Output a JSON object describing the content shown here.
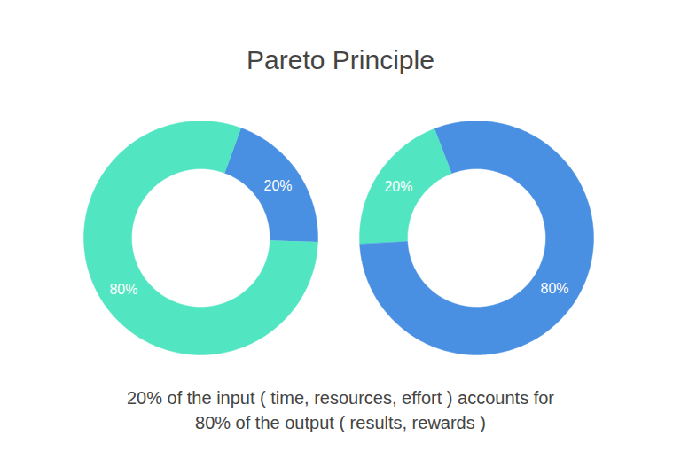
{
  "title": "Pareto Principle",
  "caption": [
    "20% of the input ( time, resources, effort ) accounts for",
    "80% of the output ( results, rewards )"
  ],
  "chart_data": [
    {
      "type": "donut",
      "values": [
        20,
        80
      ],
      "value_labels": [
        "20%",
        "80%"
      ],
      "colors": [
        "#4a90e2",
        "#52e5c2"
      ],
      "data_labels": true
    },
    {
      "type": "donut",
      "values": [
        20,
        80
      ],
      "value_labels": [
        "20%",
        "80%"
      ],
      "colors": [
        "#52e5c2",
        "#4a90e2"
      ],
      "data_labels": true
    }
  ]
}
